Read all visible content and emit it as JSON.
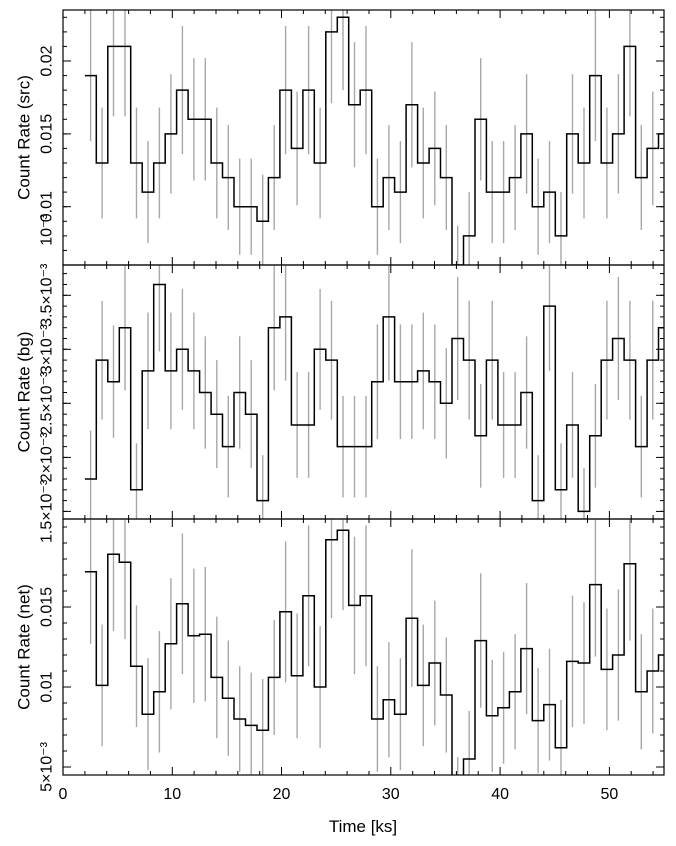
{
  "chart_data": {
    "type": "line",
    "step": true,
    "xlabel": "Time [ks]",
    "xlim": [
      0,
      55
    ],
    "x_ticks": [
      {
        "value": 0,
        "label": "0"
      },
      {
        "value": 10,
        "label": "10"
      },
      {
        "value": 20,
        "label": "20"
      },
      {
        "value": 30,
        "label": "30"
      },
      {
        "value": 40,
        "label": "40"
      },
      {
        "value": 50,
        "label": "50"
      }
    ],
    "bin_width": 1.05,
    "bin_start": 2.0,
    "error_bar_color": "#a8a8a8",
    "line_color": "#000000",
    "panels": [
      {
        "ylabel": "Count Rate (src)",
        "ylim": [
          0.006,
          0.0235
        ],
        "y_ticks": [
          {
            "value": 0.01,
            "label": "0.01"
          },
          {
            "value": 0.015,
            "label": "0.015"
          },
          {
            "value": 0.02,
            "label": "0.02"
          }
        ],
        "corner_label": "10⁻³",
        "values": [
          0.019,
          0.013,
          0.021,
          0.021,
          0.013,
          0.011,
          0.013,
          0.015,
          0.018,
          0.016,
          0.016,
          0.013,
          0.012,
          0.01,
          0.01,
          0.009,
          0.012,
          0.018,
          0.014,
          0.018,
          0.013,
          0.022,
          0.023,
          0.017,
          0.018,
          0.01,
          0.012,
          0.011,
          0.017,
          0.013,
          0.014,
          0.012,
          0.006,
          0.008,
          0.016,
          0.011,
          0.011,
          0.012,
          0.015,
          0.01,
          0.011,
          0.008,
          0.015,
          0.013,
          0.019,
          0.013,
          0.015,
          0.021,
          0.012,
          0.014,
          0.015,
          0.01
        ],
        "errors": [
          0.0045,
          0.0038,
          0.0048,
          0.0048,
          0.0038,
          0.0035,
          0.0038,
          0.0041,
          0.0044,
          0.0042,
          0.0042,
          0.0038,
          0.0036,
          0.0033,
          0.0033,
          0.0032,
          0.0036,
          0.0044,
          0.0039,
          0.0044,
          0.0038,
          0.0049,
          0.005,
          0.0043,
          0.0044,
          0.0033,
          0.0036,
          0.0035,
          0.0043,
          0.0038,
          0.0039,
          0.0036,
          0.0027,
          0.003,
          0.0042,
          0.0035,
          0.0035,
          0.0036,
          0.0041,
          0.0033,
          0.0035,
          0.003,
          0.0041,
          0.0038,
          0.0045,
          0.0038,
          0.0041,
          0.0048,
          0.0036,
          0.0039,
          0.0041,
          0.0033
        ]
      },
      {
        "ylabel": "Count Rate (bg)",
        "ylim": [
          0.00143,
          0.00378
        ],
        "y_ticks": [
          {
            "value": 0.0015,
            "label": "1.5×10⁻³"
          },
          {
            "value": 0.002,
            "label": "2×10⁻³"
          },
          {
            "value": 0.0025,
            "label": "2.5×10⁻³"
          },
          {
            "value": 0.003,
            "label": "3×10⁻³"
          },
          {
            "value": 0.0035,
            "label": "3.5×10⁻³"
          }
        ],
        "values": [
          0.0018,
          0.0029,
          0.0027,
          0.0032,
          0.0017,
          0.0028,
          0.0036,
          0.0028,
          0.003,
          0.0028,
          0.0026,
          0.0024,
          0.0021,
          0.0026,
          0.0024,
          0.0016,
          0.0032,
          0.0033,
          0.0023,
          0.0023,
          0.003,
          0.0029,
          0.0021,
          0.0021,
          0.0021,
          0.0027,
          0.0033,
          0.0027,
          0.0027,
          0.0028,
          0.0027,
          0.0025,
          0.0031,
          0.0029,
          0.0022,
          0.0029,
          0.0023,
          0.0023,
          0.0026,
          0.0016,
          0.0034,
          0.0017,
          0.0023,
          0.0015,
          0.0022,
          0.0029,
          0.0031,
          0.0029,
          0.0021,
          0.0029,
          0.0032,
          0.0032
        ],
        "errors": [
          0.00045,
          0.00055,
          0.00052,
          0.00058,
          0.00043,
          0.00054,
          0.00062,
          0.00054,
          0.00056,
          0.00054,
          0.00052,
          0.0005,
          0.00047,
          0.00052,
          0.0005,
          0.00042,
          0.00058,
          0.00059,
          0.00049,
          0.00049,
          0.00056,
          0.00055,
          0.00047,
          0.00047,
          0.00047,
          0.00053,
          0.00059,
          0.00053,
          0.00053,
          0.00054,
          0.00053,
          0.00051,
          0.00057,
          0.00055,
          0.00048,
          0.00055,
          0.00049,
          0.00049,
          0.00052,
          0.00042,
          0.0006,
          0.00043,
          0.00049,
          0.0004,
          0.00048,
          0.00055,
          0.00057,
          0.00055,
          0.00047,
          0.00055,
          0.00058,
          0.00058
        ]
      },
      {
        "ylabel": "Count Rate (net)",
        "ylim": [
          0.0045,
          0.0205
        ],
        "y_ticks": [
          {
            "value": 0.005,
            "label": "5×10⁻³"
          },
          {
            "value": 0.01,
            "label": "0.01"
          },
          {
            "value": 0.015,
            "label": "0.015"
          }
        ],
        "values": [
          0.0172,
          0.0101,
          0.0183,
          0.0178,
          0.0113,
          0.0083,
          0.0097,
          0.0127,
          0.0152,
          0.0132,
          0.0133,
          0.0106,
          0.0093,
          0.008,
          0.0076,
          0.0073,
          0.0106,
          0.0147,
          0.0107,
          0.0157,
          0.01,
          0.0192,
          0.0198,
          0.0151,
          0.0157,
          0.008,
          0.0092,
          0.0083,
          0.0143,
          0.0101,
          0.0115,
          0.0095,
          0.0029,
          0.0055,
          0.0129,
          0.0082,
          0.0087,
          0.0097,
          0.0124,
          0.0079,
          0.0089,
          0.0062,
          0.0116,
          0.0115,
          0.0164,
          0.0111,
          0.012,
          0.0177,
          0.0097,
          0.011,
          0.012,
          0.0068
        ],
        "errors": [
          0.0045,
          0.0038,
          0.0048,
          0.0048,
          0.0038,
          0.0035,
          0.0038,
          0.0041,
          0.0044,
          0.0042,
          0.0042,
          0.0038,
          0.0036,
          0.0033,
          0.0033,
          0.0032,
          0.0036,
          0.0044,
          0.0039,
          0.0044,
          0.0038,
          0.0049,
          0.005,
          0.0043,
          0.0044,
          0.0033,
          0.0036,
          0.0035,
          0.0043,
          0.0038,
          0.0039,
          0.0036,
          0.0027,
          0.003,
          0.0042,
          0.0035,
          0.0035,
          0.0036,
          0.0041,
          0.0033,
          0.0035,
          0.003,
          0.0041,
          0.0038,
          0.0045,
          0.0038,
          0.0041,
          0.0048,
          0.0036,
          0.0039,
          0.0041,
          0.0033
        ]
      }
    ]
  }
}
